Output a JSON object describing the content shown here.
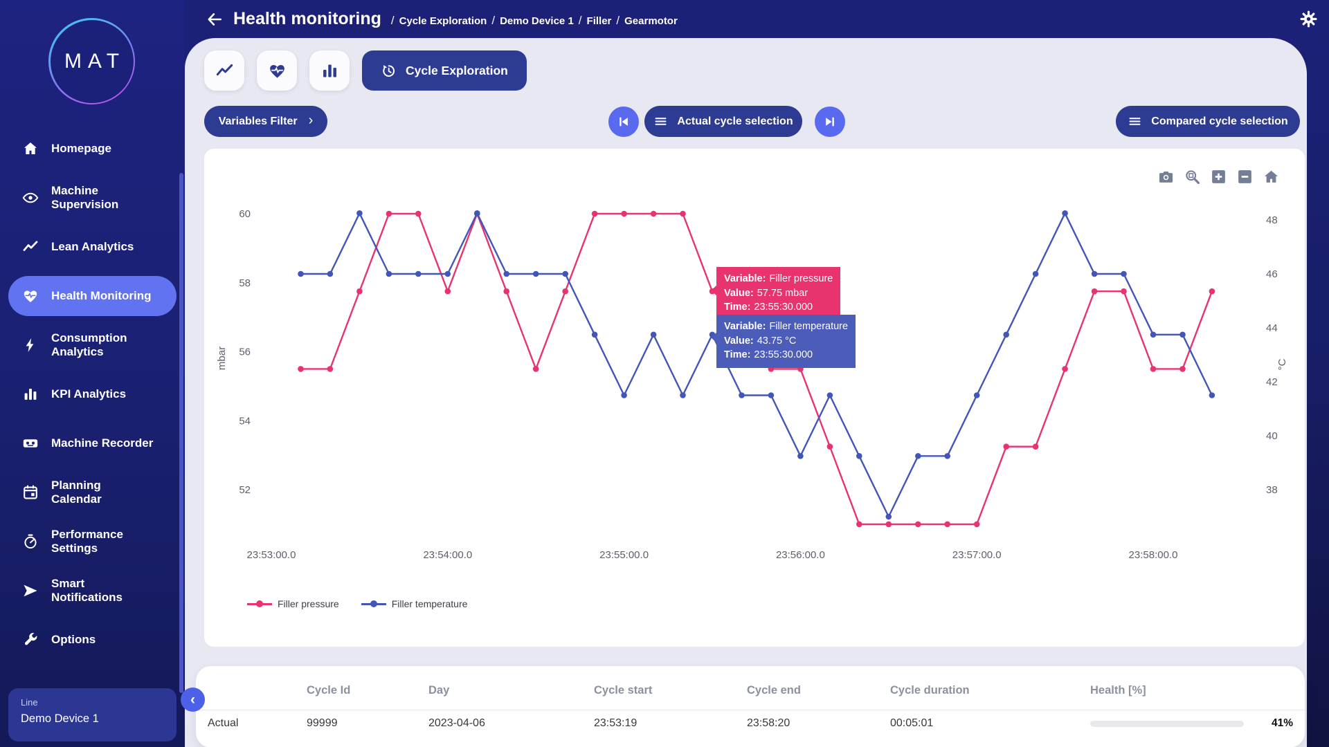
{
  "header": {
    "title": "Health monitoring",
    "breadcrumb": [
      "Cycle Exploration",
      "Demo Device 1",
      "Filler",
      "Gearmotor"
    ],
    "separator": "/"
  },
  "sidebar": {
    "logo_text": "MAT",
    "items": [
      {
        "label": "Homepage",
        "icon": "home",
        "active": false
      },
      {
        "label": "Machine\nSupervision",
        "icon": "eye",
        "active": false
      },
      {
        "label": "Lean Analytics",
        "icon": "trend",
        "active": false
      },
      {
        "label": "Health Monitoring",
        "icon": "heart-pulse",
        "active": true
      },
      {
        "label": "Consumption\nAnalytics",
        "icon": "bolt",
        "active": false
      },
      {
        "label": "KPI Analytics",
        "icon": "bar-chart",
        "active": false
      },
      {
        "label": "Machine Recorder",
        "icon": "recorder",
        "active": false
      },
      {
        "label": "Planning\nCalendar",
        "icon": "calendar",
        "active": false
      },
      {
        "label": "Performance\nSettings",
        "icon": "gauge",
        "active": false
      },
      {
        "label": "Smart\nNotifications",
        "icon": "send",
        "active": false
      },
      {
        "label": "Options",
        "icon": "wrench",
        "active": false
      }
    ],
    "device_card": {
      "label": "Line",
      "value": "Demo Device 1"
    },
    "collapse_icon": "chevron-left"
  },
  "tabs": {
    "icon_tabs": [
      {
        "icon": "trend",
        "name": "tab-trend-analysis"
      },
      {
        "icon": "heart-pulse",
        "name": "tab-health"
      },
      {
        "icon": "bar-chart",
        "name": "tab-kpi"
      }
    ],
    "active_tab": {
      "icon": "history",
      "label": "Cycle Exploration"
    }
  },
  "controls": {
    "variables_filter_label": "Variables Filter",
    "variables_filter_chevron": "›",
    "prev_icon": "skip-previous",
    "next_icon": "skip-next",
    "actual_label": "Actual cycle selection",
    "actual_icon": "hamburger",
    "compared_label": "Compared cycle selection",
    "compared_icon": "hamburger"
  },
  "chart": {
    "modebar_icons": [
      "camera",
      "zoom-box",
      "zoom-in",
      "zoom-out",
      "home-reset"
    ],
    "tooltips": [
      {
        "variable_label": "Variable:",
        "variable": "Filler pressure",
        "value_label": "Value:",
        "value": "57.75 mbar",
        "time_label": "Time:",
        "time": "23:55:30.000",
        "color": "#e8336f"
      },
      {
        "variable_label": "Variable:",
        "variable": "Filler temperature",
        "value_label": "Value:",
        "value": "43.75 °C",
        "time_label": "Time:",
        "time": "23:55:30.000",
        "color": "#4c5cb9"
      }
    ]
  },
  "chart_data": {
    "type": "line",
    "x_seconds": [
      10,
      20,
      30,
      40,
      50,
      60,
      70,
      80,
      90,
      100,
      110,
      120,
      130,
      140,
      150,
      160,
      170,
      180,
      190,
      200,
      210,
      220,
      230,
      240,
      250,
      260,
      270,
      280,
      290,
      300,
      310,
      320
    ],
    "x_tick_seconds": [
      0,
      60,
      120,
      180,
      240,
      300
    ],
    "x_tick_labels": [
      "23:53:00.0",
      "23:54:00.0",
      "23:55:00.0",
      "23:56:00.0",
      "23:57:00.0",
      "23:58:00.0"
    ],
    "y_left": {
      "title": "mbar",
      "ticks": [
        60,
        58,
        56,
        54,
        52
      ]
    },
    "y_right": {
      "title": "°C",
      "ticks": [
        48,
        46,
        44,
        42,
        40,
        38
      ]
    },
    "grid": false,
    "legend_position": "bottom-left",
    "series": [
      {
        "name": "Filler pressure",
        "axis": "left",
        "unit": "mbar",
        "color": "#e8336f",
        "values": [
          55.5,
          55.5,
          57.75,
          60,
          60,
          57.75,
          60,
          57.75,
          55.5,
          57.75,
          60,
          60,
          60,
          60,
          57.75,
          57.75,
          55.5,
          55.5,
          53.25,
          51,
          51,
          51,
          51,
          51,
          53.25,
          53.25,
          55.5,
          57.75,
          57.75,
          55.5,
          55.5,
          57.75
        ]
      },
      {
        "name": "Filler temperature",
        "axis": "right",
        "unit": "°C",
        "color": "#4356b8",
        "values": [
          46,
          46,
          48.25,
          46,
          46,
          46,
          48.25,
          46,
          46,
          46,
          43.75,
          41.5,
          43.75,
          41.5,
          43.75,
          41.5,
          41.5,
          39.25,
          41.5,
          39.25,
          37,
          39.25,
          39.25,
          41.5,
          43.75,
          46,
          48.25,
          46,
          46,
          43.75,
          43.75,
          41.5
        ]
      }
    ]
  },
  "table": {
    "columns": [
      "Cycle Id",
      "Day",
      "Cycle start",
      "Cycle end",
      "Cycle duration",
      "Health [%]"
    ],
    "row": {
      "label": "Actual",
      "cycle_id": "99999",
      "day": "2023-04-06",
      "cycle_start": "23:53:19",
      "cycle_end": "23:58:20",
      "cycle_duration": "00:05:01",
      "health_pct": 41,
      "health_display": "41%"
    }
  },
  "colors": {
    "accent_dark": "#2e3b92",
    "active_item": "#6273f2",
    "circle_button": "#5a6af0",
    "pressure": "#e8336f",
    "temperature": "#4356b8",
    "health_yellow": "#f0d53d",
    "content_bg": "#e7e8f1",
    "navy": "#1b2078"
  }
}
